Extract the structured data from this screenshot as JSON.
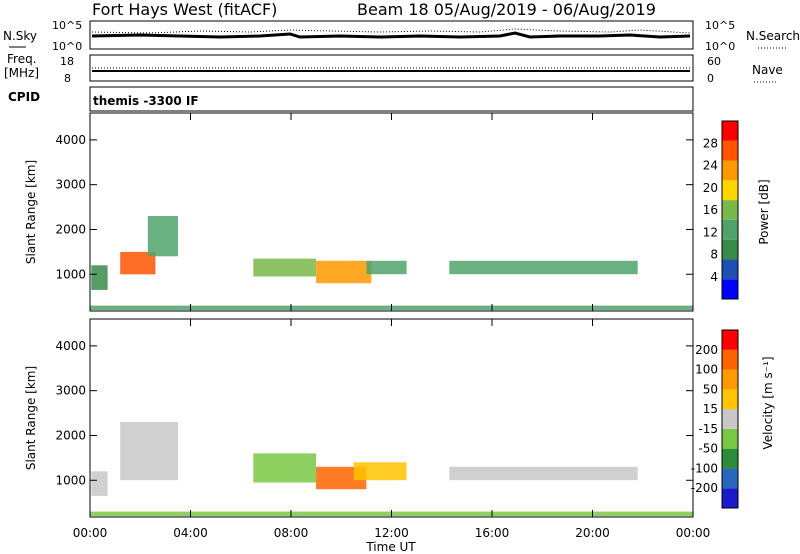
{
  "header": {
    "station": "Fort Hays West (fitACF)",
    "beam_date": "Beam 18 05/Aug/2019 - 06/Aug/2019"
  },
  "params": {
    "nsky_label": "N.Sky",
    "nsky_ticks": [
      "10^5",
      "10^0"
    ],
    "nsearch_label": "N.Search",
    "nsearch_ticks": [
      "10^5",
      "10^0"
    ],
    "freq_label_1": "Freq.",
    "freq_label_2": "[MHz]",
    "freq_ticks": [
      "18",
      "8"
    ],
    "nave_label": "Nave",
    "nave_ticks": [
      "60",
      "0"
    ],
    "cpid_label": "CPID",
    "cpid_value": "themis -3300 IF"
  },
  "colors": {
    "power": [
      "#0000ff",
      "#1f4fb3",
      "#3a8a4a",
      "#4fa36a",
      "#7ab84a",
      "#ffd700",
      "#ff9900",
      "#ff5500",
      "#ff0000"
    ],
    "velocity": [
      "#1a1acc",
      "#2a66bb",
      "#2e8b3a",
      "#79c843",
      "#c8c8c8",
      "#ffc400",
      "#ff9a00",
      "#ff6400",
      "#ff0000"
    ],
    "ground": "#c8c8c8"
  },
  "chart_data": [
    {
      "type": "heatmap",
      "name": "power",
      "ylabel": "Slant Range [km]",
      "yticks": [
        "4000",
        "3000",
        "2000",
        "1000"
      ],
      "ylim": [
        180,
        4600
      ],
      "colorbar_label": "Power [dB]",
      "colorbar_ticks": [
        "28",
        "24",
        "20",
        "16",
        "12",
        "8",
        "4"
      ],
      "colorbar_range": [
        0,
        30
      ],
      "patches": [
        {
          "x": [
            1.2,
            2.6
          ],
          "y": [
            1000,
            1500
          ],
          "v": 26
        },
        {
          "x": [
            2.3,
            3.5
          ],
          "y": [
            1400,
            2300
          ],
          "v": 12
        },
        {
          "x": [
            0.05,
            0.7
          ],
          "y": [
            650,
            1200
          ],
          "v": 8
        },
        {
          "x": [
            6.5,
            9.0
          ],
          "y": [
            950,
            1350
          ],
          "v": 14
        },
        {
          "x": [
            9.0,
            11.2
          ],
          "y": [
            800,
            1300
          ],
          "v": 22
        },
        {
          "x": [
            11.0,
            12.6
          ],
          "y": [
            1000,
            1300
          ],
          "v": 12
        },
        {
          "x": [
            14.3,
            21.8
          ],
          "y": [
            1000,
            1300
          ],
          "v": 10
        },
        {
          "x": [
            0.0,
            24.0
          ],
          "y": [
            200,
            300
          ],
          "v": 10
        }
      ]
    },
    {
      "type": "heatmap",
      "name": "velocity",
      "ylabel": "Slant Range [km]",
      "yticks": [
        "4000",
        "3000",
        "2000",
        "1000"
      ],
      "ylim": [
        180,
        4600
      ],
      "xlabel": "Time UT",
      "xticks": [
        "00:00",
        "04:00",
        "08:00",
        "12:00",
        "16:00",
        "20:00",
        "00:00"
      ],
      "xlim": [
        0,
        24
      ],
      "colorbar_label": "Velocity [m s⁻¹]",
      "colorbar_ticks": [
        "200",
        "100",
        "50",
        "15",
        "-15",
        "-50",
        "-100",
        "-200"
      ],
      "colorbar_range": [
        -250,
        250
      ],
      "patches": [
        {
          "x": [
            0.05,
            0.7
          ],
          "y": [
            650,
            1200
          ],
          "v": 0
        },
        {
          "x": [
            1.2,
            3.5
          ],
          "y": [
            1000,
            2300
          ],
          "v": 0
        },
        {
          "x": [
            6.5,
            9.0
          ],
          "y": [
            950,
            1600
          ],
          "v": -60
        },
        {
          "x": [
            9.0,
            11.0
          ],
          "y": [
            800,
            1300
          ],
          "v": 180
        },
        {
          "x": [
            10.5,
            12.6
          ],
          "y": [
            1000,
            1400
          ],
          "v": 40
        },
        {
          "x": [
            14.3,
            21.8
          ],
          "y": [
            1000,
            1300
          ],
          "v": 0
        },
        {
          "x": [
            0.0,
            24.0
          ],
          "y": [
            200,
            300
          ],
          "v": -40
        }
      ]
    }
  ]
}
